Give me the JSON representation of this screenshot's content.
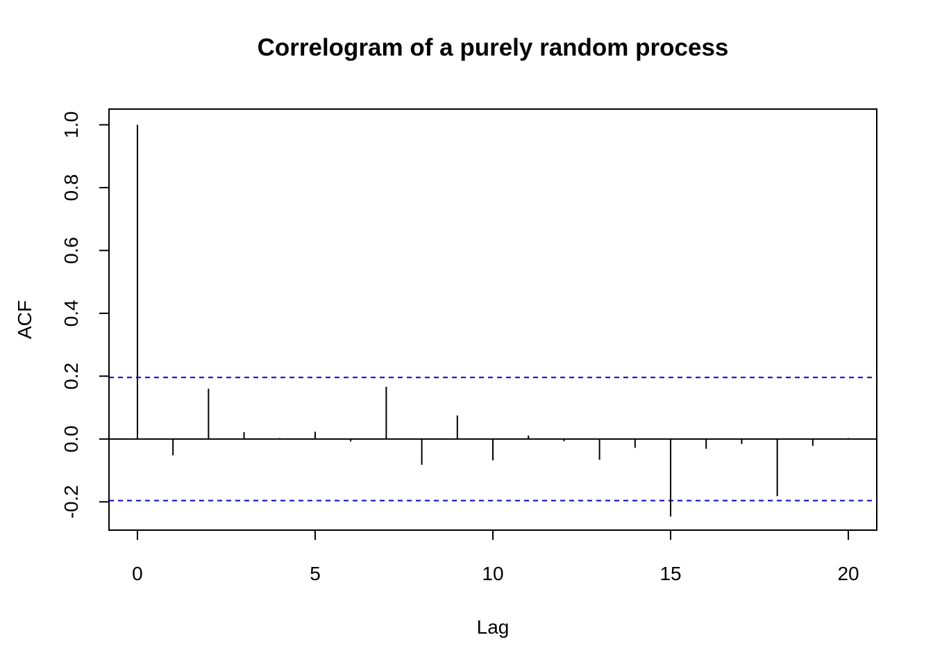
{
  "chart_data": {
    "type": "bar",
    "title": "Correlogram of a purely random process",
    "xlabel": "Lag",
    "ylabel": "ACF",
    "xlim": [
      -0.8,
      20.8
    ],
    "ylim": [
      -0.29,
      1.05
    ],
    "xticks": [
      0,
      5,
      10,
      15,
      20
    ],
    "xtick_labels": [
      "0",
      "5",
      "10",
      "15",
      "20"
    ],
    "yticks": [
      -0.2,
      0.0,
      0.2,
      0.4,
      0.6,
      0.8,
      1.0
    ],
    "ytick_labels": [
      "-0.2",
      "0.0",
      "0.2",
      "0.4",
      "0.6",
      "0.8",
      "1.0"
    ],
    "lags": [
      0,
      1,
      2,
      3,
      4,
      5,
      6,
      7,
      8,
      9,
      10,
      11,
      12,
      13,
      14,
      15,
      16,
      17,
      18,
      19,
      20
    ],
    "acf": [
      1.0,
      -0.052,
      0.16,
      0.022,
      0.003,
      0.023,
      -0.008,
      0.166,
      -0.082,
      0.075,
      -0.068,
      0.011,
      -0.007,
      -0.066,
      -0.028,
      -0.247,
      -0.031,
      -0.016,
      -0.182,
      -0.022,
      0.003
    ],
    "confidence_bounds": [
      0.196,
      -0.196
    ],
    "confidence_color": "#0000cc",
    "grid": false
  }
}
